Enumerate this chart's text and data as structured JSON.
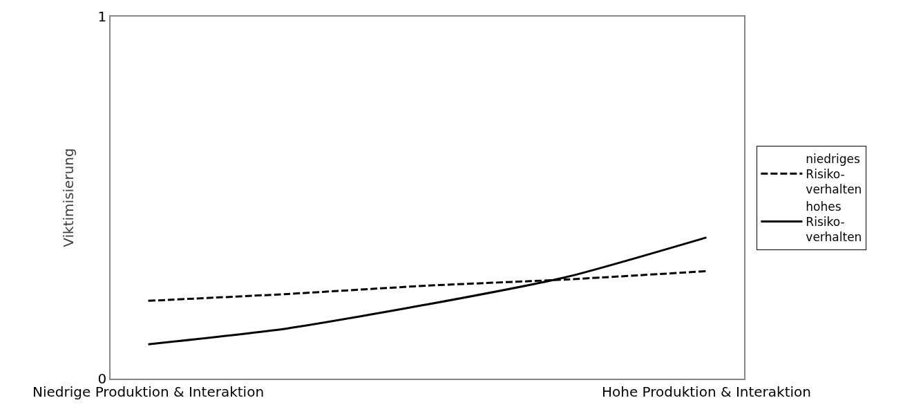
{
  "chart_data": {
    "type": "line",
    "ylabel": "Viktimisierung",
    "categories": [
      "Niedrige Produktion & Interaktion",
      null,
      null,
      null,
      "Hohe Produktion & Interaktion"
    ],
    "series": [
      {
        "name": "niedriges\nRisiko-\nverhalten",
        "color": "#000000",
        "line_style": "dashed",
        "values": [
          0.215,
          0.234,
          0.257,
          0.274,
          0.297
        ]
      },
      {
        "name": "hohes\nRisiko-\nverhalten",
        "color": "#000000",
        "line_style": "solid",
        "values": [
          0.095,
          0.139,
          0.205,
          0.281,
          0.39
        ]
      }
    ],
    "ylim": [
      0,
      1
    ],
    "yticks": [
      0,
      1
    ],
    "legend": "right",
    "marker": "none"
  }
}
